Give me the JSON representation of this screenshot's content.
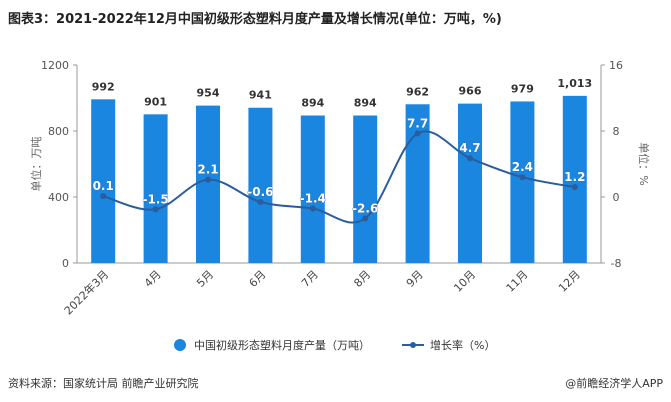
{
  "title": "图表3：2021-2022年12月中国初级形态塑料月度产量及增长情况(单位：万吨，%)",
  "footer": {
    "source": "资料来源：国家统计局 前瞻产业研究院",
    "brand": "@前瞻经济学人APP"
  },
  "chart_data": {
    "type": "bar+line",
    "categories": [
      "2022年3月",
      "4月",
      "5月",
      "6月",
      "7月",
      "8月",
      "9月",
      "10月",
      "11月",
      "12月"
    ],
    "series": [
      {
        "name": "中国初级形态塑料月度产量（万吨）",
        "type": "bar",
        "axis": "left",
        "values": [
          992,
          901,
          954,
          941,
          894,
          894,
          962,
          966,
          979,
          1013
        ],
        "labels": [
          "992",
          "901",
          "954",
          "941",
          "894",
          "894",
          "962",
          "966",
          "979",
          "1,013"
        ],
        "color": "#1a86e0"
      },
      {
        "name": "增长率（%）",
        "type": "line",
        "axis": "right",
        "values": [
          0.1,
          -1.5,
          2.1,
          -0.6,
          -1.4,
          -2.6,
          7.7,
          4.7,
          2.4,
          1.2
        ],
        "labels": [
          "0.1",
          "-1.5",
          "2.1",
          "-0.6",
          "-1.4",
          "-2.6",
          "7.7",
          "4.7",
          "2.4",
          "1.2"
        ],
        "color": "#1a86e0"
      }
    ],
    "y_left": {
      "label": "单位：万吨",
      "lim": [
        0,
        1200
      ],
      "ticks": [
        0,
        400,
        800,
        1200
      ],
      "tick_labels": [
        "0",
        "400",
        "800",
        "1200"
      ]
    },
    "y_right": {
      "label": "单位：%",
      "lim": [
        -8,
        16
      ],
      "ticks": [
        -8,
        0,
        8,
        16
      ],
      "tick_labels": [
        "-8",
        "0",
        "8",
        "16"
      ]
    },
    "legend_position": "bottom",
    "grid": false
  }
}
